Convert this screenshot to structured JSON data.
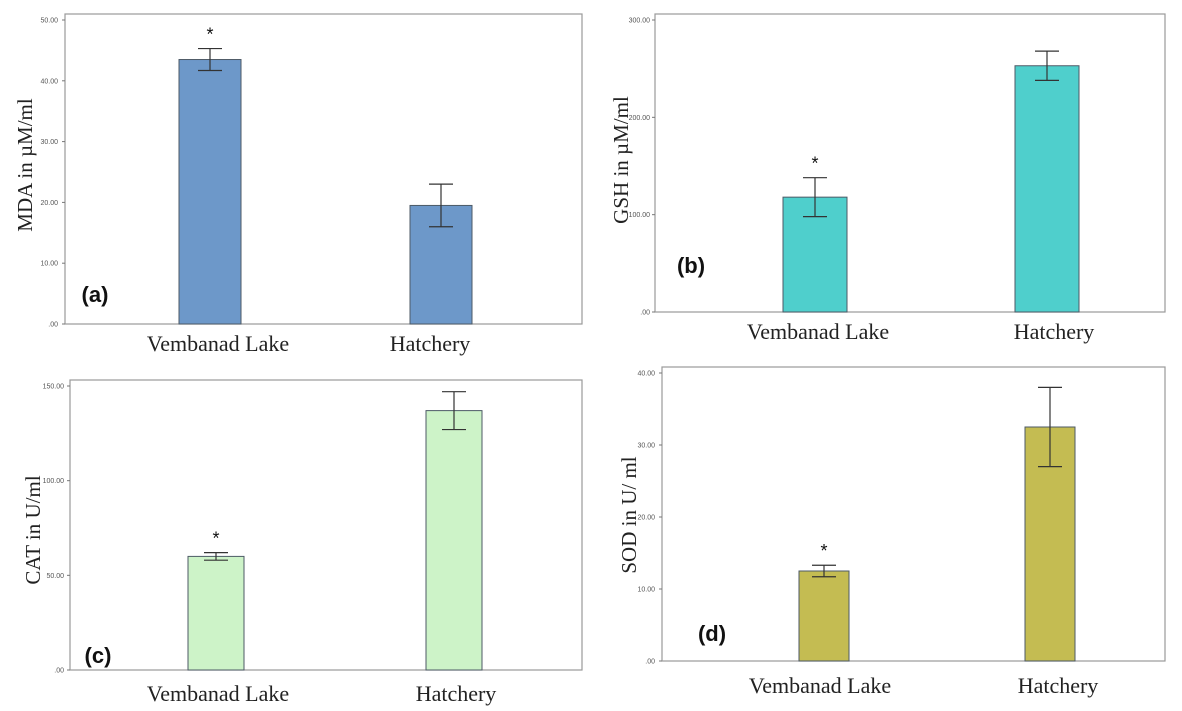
{
  "chart_data": [
    {
      "panel": "(a)",
      "type": "bar",
      "ylabel": "MDA in µM/ml",
      "categories": [
        "Vembanad Lake",
        "Hatchery"
      ],
      "values": [
        43.5,
        19.5
      ],
      "errors": [
        1.8,
        3.5
      ],
      "significance": [
        "*",
        ""
      ],
      "ylim": [
        0,
        50
      ],
      "yticks": [
        0,
        10,
        20,
        30,
        40,
        50
      ],
      "yticklabels": [
        ".00",
        "10.00",
        "20.00",
        "30.00",
        "40.00",
        "50.00"
      ],
      "color": "#6d98c9"
    },
    {
      "panel": "(b)",
      "type": "bar",
      "ylabel": "GSH in µM/ml",
      "categories": [
        "Vembanad Lake",
        "Hatchery"
      ],
      "values": [
        118,
        253
      ],
      "errors": [
        20,
        15
      ],
      "significance": [
        "*",
        ""
      ],
      "ylim": [
        0,
        300
      ],
      "yticks": [
        0,
        100,
        200,
        300
      ],
      "yticklabels": [
        ".00",
        "100.00",
        "200.00",
        "300.00"
      ],
      "color": "#4fcfcc"
    },
    {
      "panel": "(c)",
      "type": "bar",
      "ylabel": "CAT in U/ml",
      "categories": [
        "Vembanad Lake",
        "Hatchery"
      ],
      "values": [
        60,
        137
      ],
      "errors": [
        2,
        10
      ],
      "significance": [
        "*",
        ""
      ],
      "ylim": [
        0,
        150
      ],
      "yticks": [
        0,
        50,
        100,
        150
      ],
      "yticklabels": [
        ".00",
        "50.00",
        "100.00",
        "150.00"
      ],
      "color": "#cdf3c8"
    },
    {
      "panel": "(d)",
      "type": "bar",
      "ylabel": "SOD in U/ ml",
      "categories": [
        "Vembanad Lake",
        "Hatchery"
      ],
      "values": [
        12.5,
        32.5
      ],
      "errors": [
        0.8,
        5.5
      ],
      "significance": [
        "*",
        ""
      ],
      "ylim": [
        0,
        40
      ],
      "yticks": [
        0,
        10,
        20,
        30,
        40
      ],
      "yticklabels": [
        ".00",
        "10.00",
        "20.00",
        "30.00",
        "40.00"
      ],
      "color": "#c4bc52"
    }
  ]
}
